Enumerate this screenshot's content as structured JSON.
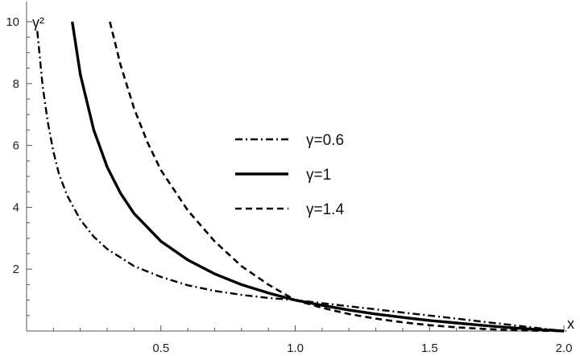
{
  "chart_data": {
    "type": "line",
    "xlabel": "x",
    "ylabel": "γ²",
    "xlim": [
      0,
      2.0
    ],
    "ylim": [
      0,
      10
    ],
    "x_ticks": [
      0.5,
      1.0,
      1.5,
      2.0
    ],
    "x_tick_labels": [
      "0.5",
      "1.0",
      "1.5",
      "2.0"
    ],
    "y_ticks": [
      2,
      4,
      6,
      8,
      10
    ],
    "y_tick_labels": [
      "2",
      "4",
      "6",
      "8",
      "10"
    ],
    "legend_position": "center-right",
    "grid": false,
    "series": [
      {
        "name": "γ=0.6",
        "line_style": "dash-dot",
        "x": [
          0.04,
          0.06,
          0.08,
          0.1,
          0.12,
          0.15,
          0.2,
          0.25,
          0.3,
          0.4,
          0.5,
          0.6,
          0.7,
          0.8,
          0.9,
          1.0,
          1.1,
          1.2,
          1.3,
          1.4,
          1.5,
          1.6,
          1.7,
          1.8,
          1.9,
          2.0
        ],
        "y": [
          9.7,
          7.9,
          6.7,
          5.8,
          5.1,
          4.4,
          3.6,
          3.05,
          2.65,
          2.1,
          1.75,
          1.48,
          1.3,
          1.17,
          1.07,
          1.0,
          0.9,
          0.8,
          0.7,
          0.6,
          0.5,
          0.4,
          0.3,
          0.2,
          0.1,
          0.0
        ]
      },
      {
        "name": "γ=1",
        "line_style": "solid",
        "x": [
          0.17,
          0.2,
          0.25,
          0.3,
          0.35,
          0.4,
          0.5,
          0.6,
          0.7,
          0.8,
          0.9,
          1.0,
          1.1,
          1.2,
          1.3,
          1.4,
          1.5,
          1.6,
          1.7,
          1.8,
          1.9,
          2.0
        ],
        "y": [
          10.0,
          8.3,
          6.5,
          5.3,
          4.45,
          3.8,
          2.9,
          2.3,
          1.85,
          1.5,
          1.23,
          1.0,
          0.83,
          0.68,
          0.55,
          0.44,
          0.34,
          0.26,
          0.18,
          0.11,
          0.05,
          0.0
        ]
      },
      {
        "name": "γ=1.4",
        "line_style": "dashed",
        "x": [
          0.31,
          0.35,
          0.4,
          0.45,
          0.5,
          0.6,
          0.7,
          0.8,
          0.9,
          1.0,
          1.1,
          1.2,
          1.3,
          1.4,
          1.5,
          1.6,
          1.7,
          1.8,
          1.9,
          2.0
        ],
        "y": [
          10.0,
          8.6,
          7.2,
          6.1,
          5.2,
          3.9,
          2.9,
          2.1,
          1.5,
          1.0,
          0.75,
          0.55,
          0.4,
          0.28,
          0.19,
          0.12,
          0.07,
          0.03,
          0.01,
          0.0
        ]
      }
    ]
  }
}
